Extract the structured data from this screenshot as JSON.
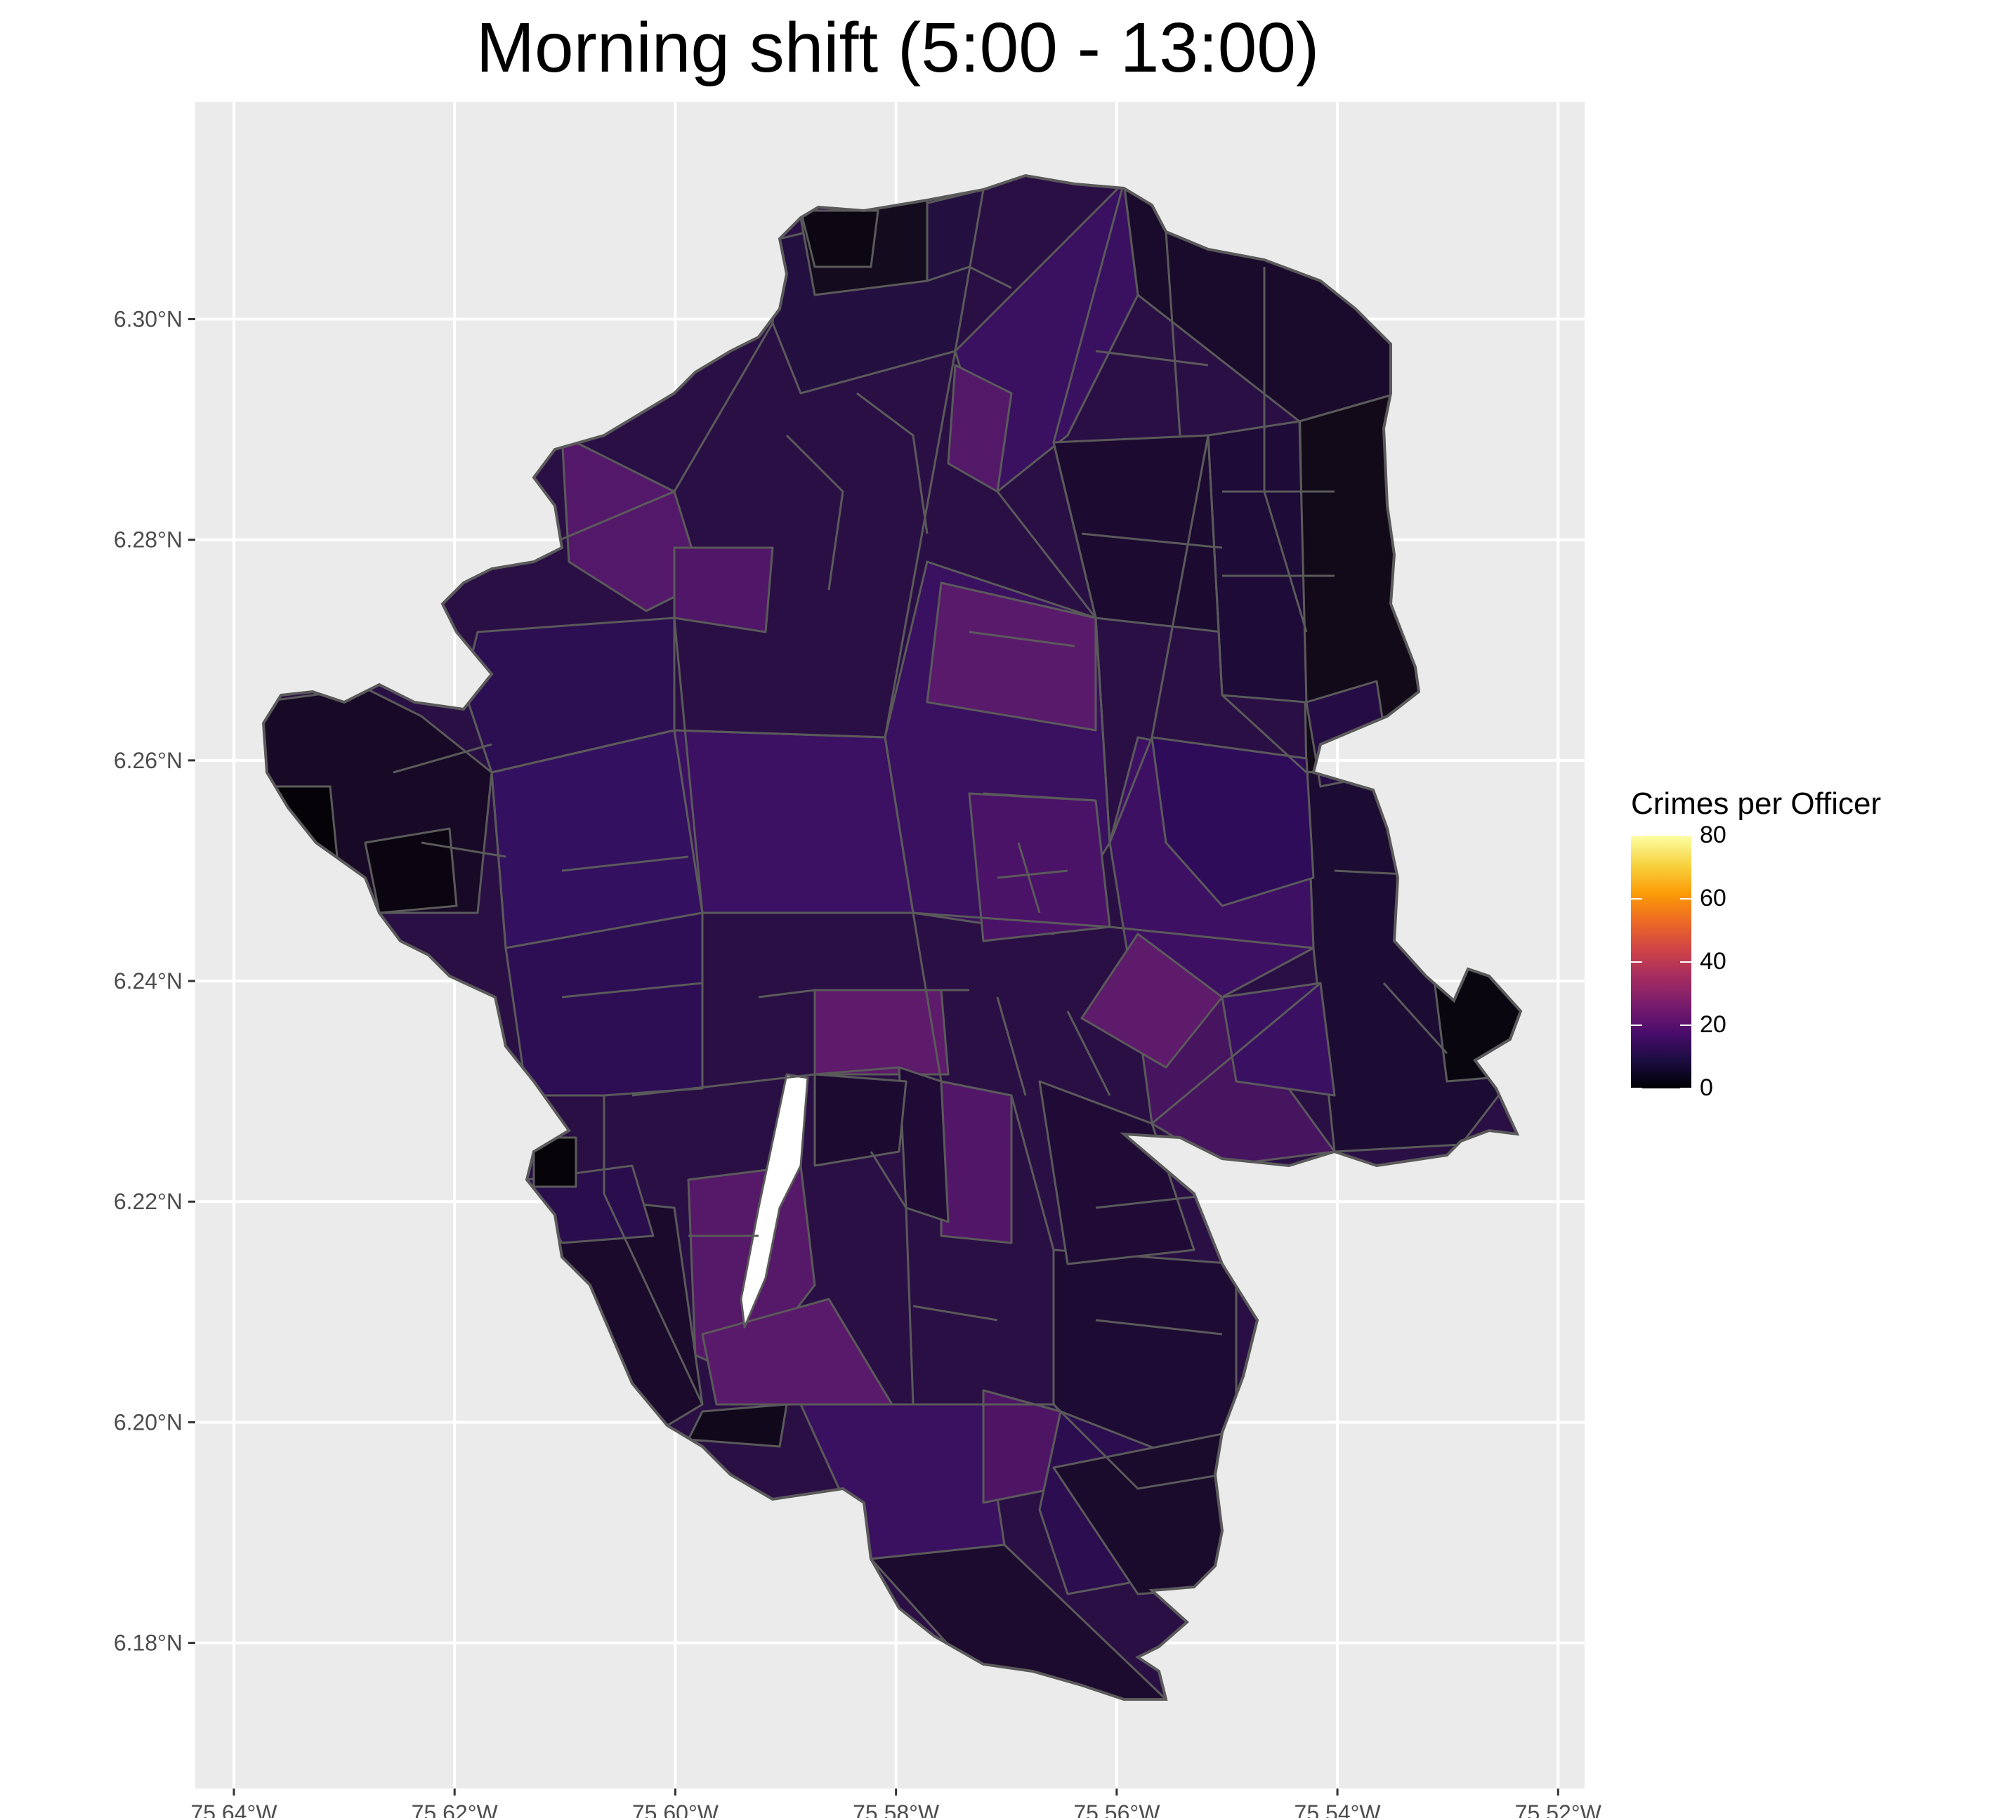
{
  "title": "Morning shift (5:00 - 13:00)",
  "axes": {
    "x_ticks": [
      {
        "value": -75.64,
        "label": "75.64°W"
      },
      {
        "value": -75.62,
        "label": "75.62°W"
      },
      {
        "value": -75.6,
        "label": "75.60°W"
      },
      {
        "value": -75.58,
        "label": "75.58°W"
      },
      {
        "value": -75.56,
        "label": "75.56°W"
      },
      {
        "value": -75.54,
        "label": "75.54°W"
      },
      {
        "value": -75.52,
        "label": "75.52°W"
      }
    ],
    "y_ticks": [
      {
        "value": 6.3,
        "label": "6.30°N"
      },
      {
        "value": 6.28,
        "label": "6.28°N"
      },
      {
        "value": 6.26,
        "label": "6.26°N"
      },
      {
        "value": 6.24,
        "label": "6.24°N"
      },
      {
        "value": 6.22,
        "label": "6.22°N"
      },
      {
        "value": 6.2,
        "label": "6.20°N"
      },
      {
        "value": 6.18,
        "label": "6.18°N"
      }
    ],
    "xlim": [
      -75.6435,
      -75.5176
    ],
    "ylim": [
      6.1668,
      6.3197
    ]
  },
  "legend": {
    "title": "Crimes per Officer",
    "range": [
      0,
      80
    ],
    "ticks": [
      {
        "value": 80,
        "label": "80"
      },
      {
        "value": 60,
        "label": "60"
      },
      {
        "value": 40,
        "label": "40"
      },
      {
        "value": 20,
        "label": "20"
      },
      {
        "value": 0,
        "label": "0"
      }
    ],
    "palette": "inferno"
  },
  "colors": {
    "panel_background": "#ebebeb",
    "grid_lines": "#ffffff",
    "polygon_border": "#5a5a5a",
    "palette_stops": [
      "#000004",
      "#1b0c41",
      "#4a0c6b",
      "#781c6d",
      "#a52c60",
      "#cf4446",
      "#ed6925",
      "#fb9b06",
      "#f7d13d",
      "#fcffa4"
    ]
  }
}
